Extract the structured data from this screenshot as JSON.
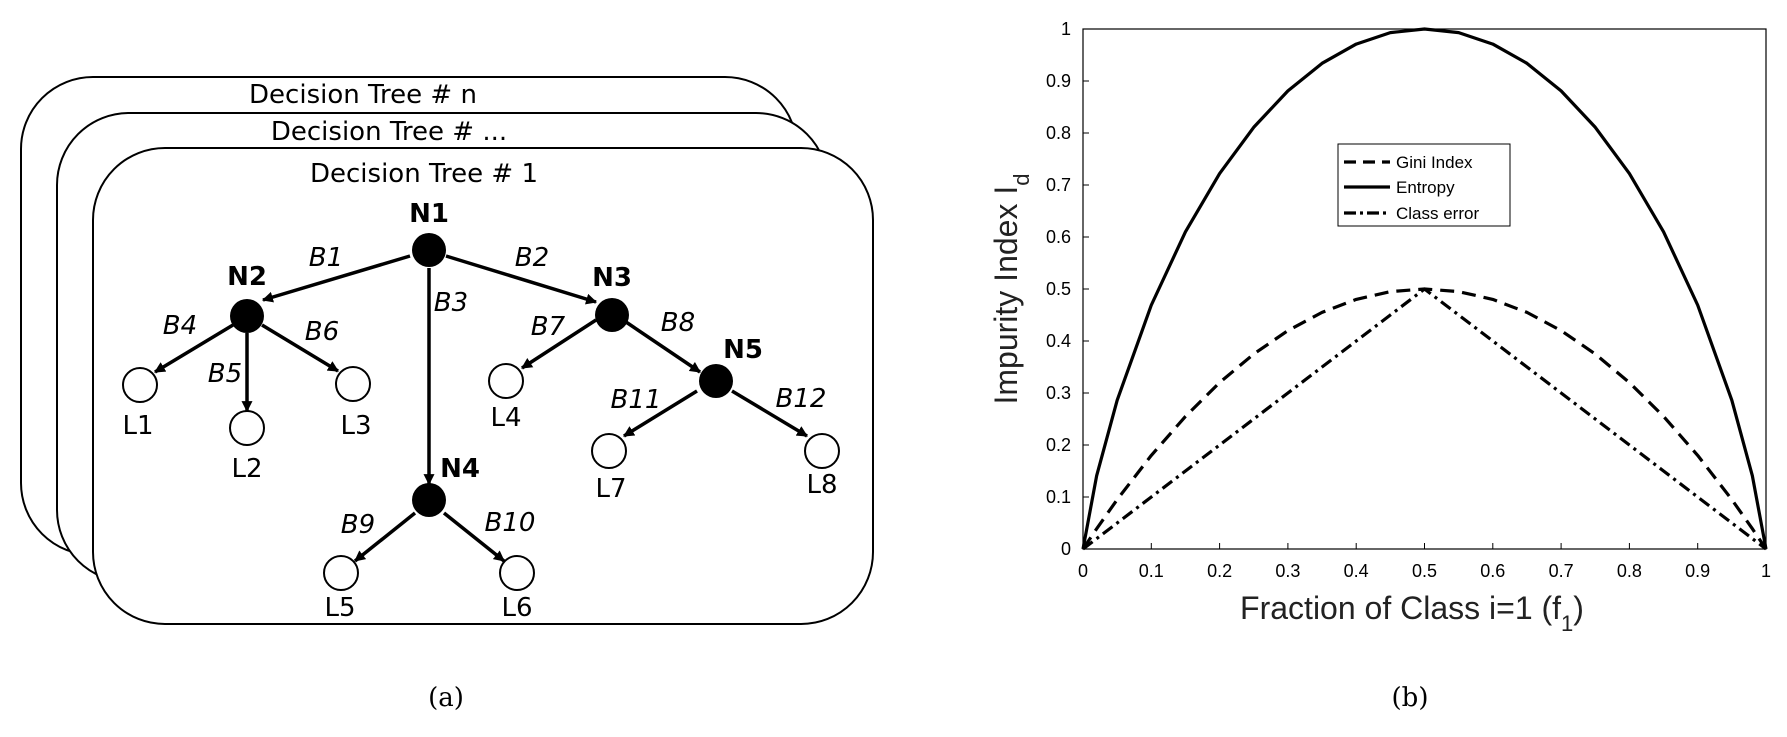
{
  "panel_a": {
    "caption": "(a)",
    "cards": [
      {
        "title": "Decision Tree # n"
      },
      {
        "title": "Decision Tree # ..."
      },
      {
        "title": "Decision Tree # 1"
      }
    ],
    "nodes": [
      {
        "id": "n1",
        "label": "N1"
      },
      {
        "id": "n2",
        "label": "N2"
      },
      {
        "id": "n3",
        "label": "N3"
      },
      {
        "id": "n4",
        "label": "N4"
      },
      {
        "id": "n5",
        "label": "N5"
      }
    ],
    "leaves": [
      {
        "id": "l1",
        "label": "L1"
      },
      {
        "id": "l2",
        "label": "L2"
      },
      {
        "id": "l3",
        "label": "L3"
      },
      {
        "id": "l4",
        "label": "L4"
      },
      {
        "id": "l5",
        "label": "L5"
      },
      {
        "id": "l6",
        "label": "L6"
      },
      {
        "id": "l7",
        "label": "L7"
      },
      {
        "id": "l8",
        "label": "L8"
      }
    ],
    "branches": [
      {
        "id": "b1",
        "label": "B1",
        "from": "n1",
        "to": "n2"
      },
      {
        "id": "b2",
        "label": "B2",
        "from": "n1",
        "to": "n3"
      },
      {
        "id": "b3",
        "label": "B3",
        "from": "n1",
        "to": "n4"
      },
      {
        "id": "b4",
        "label": "B4",
        "from": "n2",
        "to": "l1"
      },
      {
        "id": "b5",
        "label": "B5",
        "from": "n2",
        "to": "l2"
      },
      {
        "id": "b6",
        "label": "B6",
        "from": "n2",
        "to": "l3"
      },
      {
        "id": "b7",
        "label": "B7",
        "from": "n3",
        "to": "l4"
      },
      {
        "id": "b8",
        "label": "B8",
        "from": "n3",
        "to": "n5"
      },
      {
        "id": "b9",
        "label": "B9",
        "from": "n4",
        "to": "l5"
      },
      {
        "id": "b10",
        "label": "B10",
        "from": "n4",
        "to": "l6"
      },
      {
        "id": "b11",
        "label": "B11",
        "from": "n5",
        "to": "l7"
      },
      {
        "id": "b12",
        "label": "B12",
        "from": "n5",
        "to": "l8"
      }
    ]
  },
  "panel_b": {
    "caption": "(b)",
    "chart_data": {
      "type": "line",
      "title": "",
      "xlabel": "Fraction of Class i=1 (f",
      "xlabel_sub": "1",
      "xlabel_close": ")",
      "ylabel": "Impurity Index I",
      "ylabel_sub": "d",
      "xlim": [
        0,
        1
      ],
      "ylim": [
        0,
        1
      ],
      "xticks": [
        "0",
        "0.1",
        "0.2",
        "0.3",
        "0.4",
        "0.5",
        "0.6",
        "0.7",
        "0.8",
        "0.9",
        "1"
      ],
      "yticks": [
        "0",
        "0.1",
        "0.2",
        "0.3",
        "0.4",
        "0.5",
        "0.6",
        "0.7",
        "0.8",
        "0.9",
        "1"
      ],
      "x": [
        0,
        0.02,
        0.05,
        0.1,
        0.15,
        0.2,
        0.25,
        0.3,
        0.35,
        0.4,
        0.45,
        0.5,
        0.55,
        0.6,
        0.65,
        0.7,
        0.75,
        0.8,
        0.85,
        0.9,
        0.95,
        0.98,
        1
      ],
      "series": [
        {
          "name": "Gini Index",
          "style": "dashed",
          "values": [
            0,
            0.039,
            0.095,
            0.18,
            0.255,
            0.32,
            0.375,
            0.42,
            0.455,
            0.48,
            0.495,
            0.5,
            0.495,
            0.48,
            0.455,
            0.42,
            0.375,
            0.32,
            0.255,
            0.18,
            0.095,
            0.039,
            0
          ]
        },
        {
          "name": "Entropy",
          "style": "solid",
          "values": [
            0,
            0.141,
            0.286,
            0.469,
            0.61,
            0.722,
            0.811,
            0.881,
            0.934,
            0.971,
            0.993,
            1,
            0.993,
            0.971,
            0.934,
            0.881,
            0.811,
            0.722,
            0.61,
            0.469,
            0.286,
            0.141,
            0
          ]
        },
        {
          "name": "Class error",
          "style": "dash-dot",
          "values": [
            0,
            0.02,
            0.05,
            0.1,
            0.15,
            0.2,
            0.25,
            0.3,
            0.35,
            0.4,
            0.45,
            0.5,
            0.45,
            0.4,
            0.35,
            0.3,
            0.25,
            0.2,
            0.15,
            0.1,
            0.05,
            0.02,
            0
          ]
        }
      ],
      "legend_position": "upper-center",
      "grid": false,
      "line_color": "#000000"
    }
  }
}
